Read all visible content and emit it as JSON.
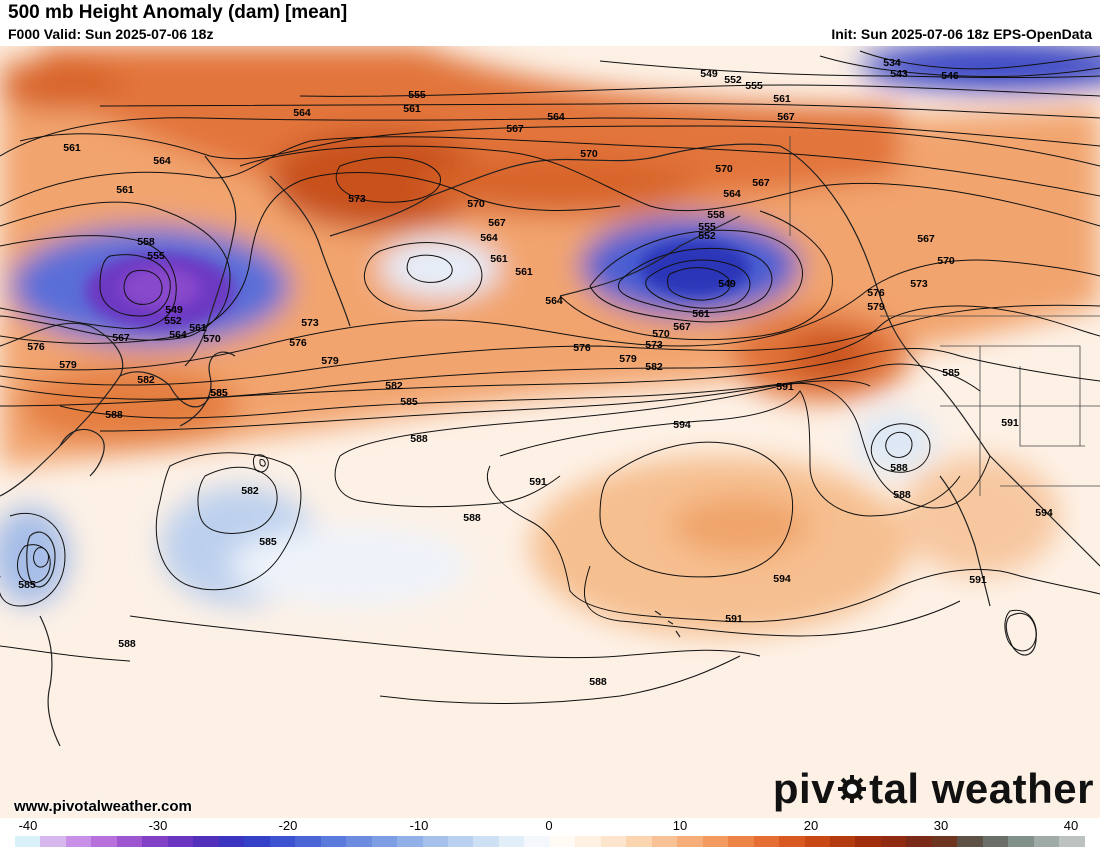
{
  "header": {
    "title": "500 mb Height Anomaly (dam) [mean]",
    "valid": "F000 Valid: Sun 2025-07-06 18z",
    "init": "Init: Sun 2025-07-06 18z EPS-OpenData"
  },
  "footer": {
    "website": "www.pivotalweather.com",
    "brand_left": "piv",
    "brand_right": "tal weather"
  },
  "colorbar": {
    "ticks": [
      "-40",
      "-30",
      "-20",
      "-10",
      "0",
      "10",
      "20",
      "30",
      "40"
    ],
    "colors": [
      "#d8f0f8",
      "#d6b8ee",
      "#c890e6",
      "#b870dc",
      "#9d55d0",
      "#8240c6",
      "#6a35c0",
      "#5230bc",
      "#3a34c0",
      "#3440c8",
      "#3c52d0",
      "#4a66d6",
      "#5a7adc",
      "#6c8ce0",
      "#7e9ee4",
      "#92b0e8",
      "#a6c0ec",
      "#bad0f0",
      "#cde0f4",
      "#e2eef8",
      "#f4f8fc",
      "#fffaf4",
      "#fff0e2",
      "#fde4cc",
      "#fbd4b0",
      "#f8c296",
      "#f5ae7a",
      "#f29a60",
      "#ec8448",
      "#e46e34",
      "#d85a22",
      "#c84816",
      "#b43a10",
      "#a02e0c",
      "#902a10",
      "#7a2a16",
      "#6e3620",
      "#5e5246",
      "#6a7068",
      "#82908a",
      "#a0aaa6",
      "#bcc2c0"
    ]
  },
  "contour_labels": [
    {
      "text": "534"
    },
    {
      "text": "543"
    },
    {
      "text": "546"
    },
    {
      "text": "549"
    },
    {
      "text": "552"
    },
    {
      "text": "555"
    },
    {
      "text": "555"
    },
    {
      "text": "561"
    },
    {
      "text": "561"
    },
    {
      "text": "567"
    },
    {
      "text": "564"
    },
    {
      "text": "564"
    },
    {
      "text": "561"
    },
    {
      "text": "564"
    },
    {
      "text": "567"
    },
    {
      "text": "570"
    },
    {
      "text": "570"
    },
    {
      "text": "567"
    },
    {
      "text": "564"
    },
    {
      "text": "573"
    },
    {
      "text": "570"
    },
    {
      "text": "567"
    },
    {
      "text": "564"
    },
    {
      "text": "561"
    },
    {
      "text": "561"
    },
    {
      "text": "558"
    },
    {
      "text": "555"
    },
    {
      "text": "558"
    },
    {
      "text": "555"
    },
    {
      "text": "552"
    },
    {
      "text": "549"
    },
    {
      "text": "561"
    },
    {
      "text": "552"
    },
    {
      "text": "549"
    },
    {
      "text": "564"
    },
    {
      "text": "561"
    },
    {
      "text": "567"
    },
    {
      "text": "570"
    },
    {
      "text": "567"
    },
    {
      "text": "570"
    },
    {
      "text": "573"
    },
    {
      "text": "564"
    },
    {
      "text": "561"
    },
    {
      "text": "567"
    },
    {
      "text": "570"
    },
    {
      "text": "573"
    },
    {
      "text": "576"
    },
    {
      "text": "579"
    },
    {
      "text": "576"
    },
    {
      "text": "579"
    },
    {
      "text": "582"
    },
    {
      "text": "582"
    },
    {
      "text": "585"
    },
    {
      "text": "573"
    },
    {
      "text": "576"
    },
    {
      "text": "579"
    },
    {
      "text": "582"
    },
    {
      "text": "585"
    },
    {
      "text": "588"
    },
    {
      "text": "591"
    },
    {
      "text": "594"
    },
    {
      "text": "591"
    },
    {
      "text": "588"
    },
    {
      "text": "585"
    },
    {
      "text": "585"
    },
    {
      "text": "576"
    },
    {
      "text": "579"
    },
    {
      "text": "588"
    },
    {
      "text": "582"
    },
    {
      "text": "585"
    },
    {
      "text": "585"
    },
    {
      "text": "588"
    },
    {
      "text": "591"
    },
    {
      "text": "594"
    },
    {
      "text": "591"
    },
    {
      "text": "588"
    },
    {
      "text": "591"
    },
    {
      "text": "594"
    },
    {
      "text": "588"
    },
    {
      "text": "588"
    }
  ]
}
